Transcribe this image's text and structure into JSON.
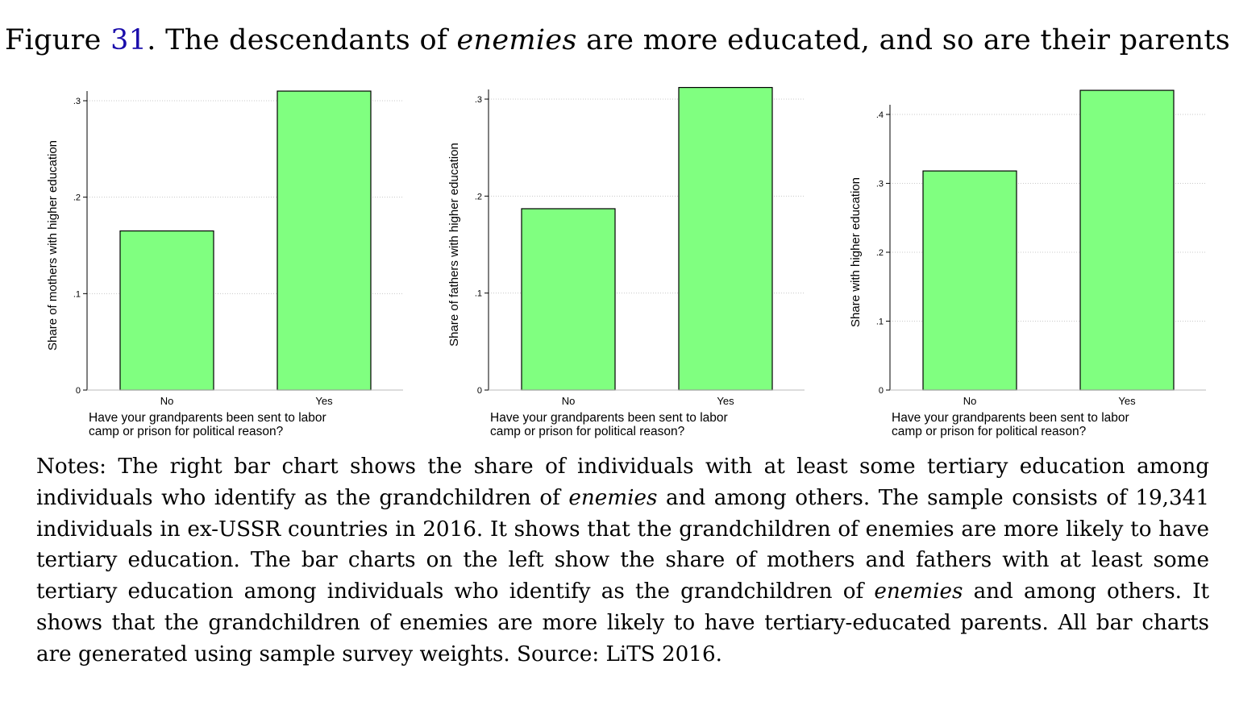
{
  "figure": {
    "prefix": "Figure ",
    "number": "31",
    "title_part1": ". The descendants of ",
    "title_emph": "enemies",
    "title_part2": " are more educated, and so are their parents"
  },
  "chart_data": [
    {
      "type": "bar",
      "categories": [
        "No",
        "Yes"
      ],
      "values": [
        0.165,
        0.31
      ],
      "ylabel": "Share of mothers with higher education",
      "xlabel_line1": "Have your grandparents been sent to labor",
      "xlabel_line2": "camp or prison for political reason?",
      "yticks": [
        0,
        0.1,
        0.2,
        0.3
      ],
      "ytick_labels": [
        "0",
        ".1",
        ".2",
        ".3"
      ],
      "ylim": [
        0,
        0.3
      ],
      "grid": true,
      "bar_color": "#80ff80"
    },
    {
      "type": "bar",
      "categories": [
        "No",
        "Yes"
      ],
      "values": [
        0.187,
        0.312
      ],
      "ylabel": "Share of fathers with higher education",
      "xlabel_line1": "Have your grandparents been sent to labor",
      "xlabel_line2": "camp or prison for political reason?",
      "yticks": [
        0,
        0.1,
        0.2,
        0.3
      ],
      "ytick_labels": [
        "0",
        ".1",
        ".2",
        ".3"
      ],
      "ylim": [
        0,
        0.3
      ],
      "grid": true,
      "bar_color": "#80ff80"
    },
    {
      "type": "bar",
      "categories": [
        "No",
        "Yes"
      ],
      "values": [
        0.318,
        0.435
      ],
      "ylabel": "Share with higher education",
      "xlabel_line1": "Have your grandparents been sent to labor",
      "xlabel_line2": "camp or prison for political reason?",
      "yticks": [
        0,
        0.1,
        0.2,
        0.3,
        0.4
      ],
      "ytick_labels": [
        "0",
        ".1",
        ".2",
        ".3",
        ".4"
      ],
      "ylim": [
        0,
        0.4
      ],
      "grid": true,
      "bar_color": "#80ff80"
    }
  ],
  "notes": {
    "p1": "Notes: The right bar chart shows the share of individuals with at least some tertiary education among individuals who identify as the grandchildren of ",
    "e1": "enemies",
    "p2": " and among others.  The sample consists of 19,341 individuals in ex-USSR countries in 2016. It shows that the grandchildren of enemies are more likely to have tertiary education. The bar charts on the left show the share of mothers and fathers with at least some tertiary education among individuals who identify as the grandchildren of ",
    "e2": "enemies",
    "p3": " and among others.  It shows that the grandchildren of enemies are more likely to have tertiary-educated parents. All bar charts are generated using sample survey weights. Source: LiTS 2016."
  }
}
